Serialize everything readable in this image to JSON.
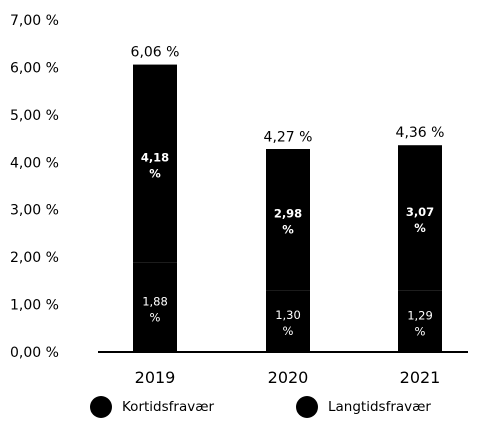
{
  "chart_data": {
    "type": "bar",
    "stacked": true,
    "categories": [
      "2019",
      "2020",
      "2021"
    ],
    "series": [
      {
        "name": "Kortidsfravær",
        "values": [
          1.88,
          1.3,
          1.29
        ],
        "labels": [
          "1,88 %",
          "1,30 %",
          "1,29 %"
        ]
      },
      {
        "name": "Langtidsfravær",
        "values": [
          4.18,
          2.98,
          3.07
        ],
        "labels": [
          "4,18 %",
          "2,98 %",
          "3,07 %"
        ]
      }
    ],
    "totals": [
      6.06,
      4.27,
      4.36
    ],
    "total_labels": [
      "6,06 %",
      "4,27 %",
      "4,36 %"
    ],
    "yticks": [
      0,
      1,
      2,
      3,
      4,
      5,
      6,
      7
    ],
    "ytick_labels": [
      "0,00 %",
      "1,00 %",
      "2,00 %",
      "3,00 %",
      "4,00 %",
      "5,00 %",
      "6,00 %",
      "7,00 %"
    ],
    "ylim": [
      0,
      7
    ],
    "grid": false,
    "legend_position": "bottom",
    "colors": {
      "bar": "#000000",
      "segment_text": "#ffffff",
      "text": "#000000"
    }
  },
  "legend": {
    "items": [
      {
        "label": "Kortidsfravær",
        "icon": "filled-circle-icon"
      },
      {
        "label": "Langtidsfravær",
        "icon": "filled-circle-icon"
      }
    ]
  }
}
